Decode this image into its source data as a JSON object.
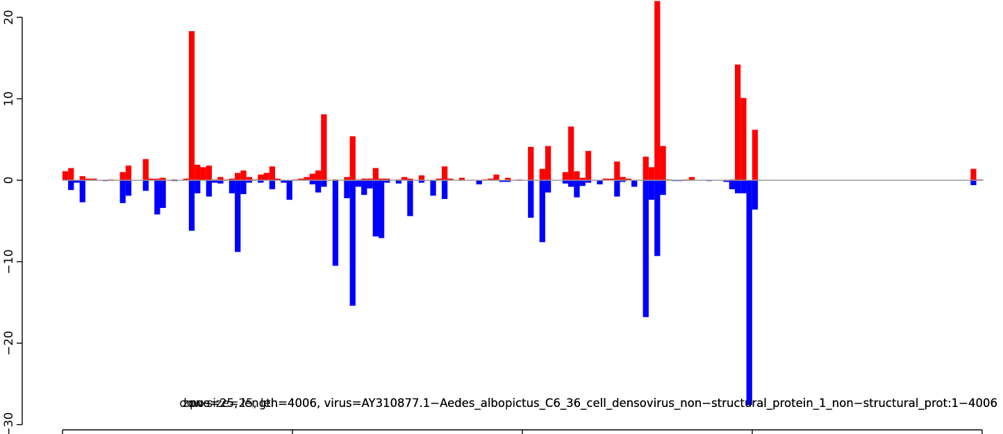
{
  "chart_data": {
    "type": "bar",
    "title": "",
    "xlabel": "",
    "ylabel": "",
    "ylim": [
      -30,
      20
    ],
    "y_ticks": [
      -30,
      -20,
      -10,
      0,
      10,
      20
    ],
    "y_tick_labels": [
      "−30",
      "−20",
      "−10",
      "0",
      "10",
      "20"
    ],
    "xlim": [
      0,
      4006
    ],
    "bin_size": 25,
    "overlay_labels": [
      "dow size=25, len=4006, virus=AY310877.1−Aedes_albopictus_C6_36_cell_densovirus_non−structural_protein_1_non−structural_prot:1−4006",
      "pos=25, length=4006, virus=AY310877.1−Aedes_albopictus_C6_36_cell_densovirus_non−structural_protein_1_non−structural_prot:1−4006",
      "zone=25, length=4006, virus=AY310877.1−Aedes_albopictus_C6_36_cell_densovirus_non−structural_protein_1_non−structural_prot:1−4006"
    ],
    "baseline_color": "#999999",
    "series": [
      {
        "color": "#ff0000",
        "points": [
          {
            "x": 12,
            "y": 1.1
          },
          {
            "x": 37,
            "y": 1.5
          },
          {
            "x": 87,
            "y": 0.5
          },
          {
            "x": 112,
            "y": 0.2
          },
          {
            "x": 137,
            "y": 0.2
          },
          {
            "x": 212,
            "y": 0.1
          },
          {
            "x": 262,
            "y": 1.0
          },
          {
            "x": 287,
            "y": 1.8
          },
          {
            "x": 362,
            "y": 2.6
          },
          {
            "x": 387,
            "y": 0.2
          },
          {
            "x": 412,
            "y": 0.2
          },
          {
            "x": 437,
            "y": 0.3
          },
          {
            "x": 487,
            "y": 0.1
          },
          {
            "x": 537,
            "y": 0.2
          },
          {
            "x": 562,
            "y": 18.3
          },
          {
            "x": 587,
            "y": 1.9
          },
          {
            "x": 612,
            "y": 1.6
          },
          {
            "x": 637,
            "y": 1.8
          },
          {
            "x": 662,
            "y": 0.1
          },
          {
            "x": 687,
            "y": 0.4
          },
          {
            "x": 712,
            "y": 0.1
          },
          {
            "x": 737,
            "y": 0.2
          },
          {
            "x": 762,
            "y": 0.9
          },
          {
            "x": 787,
            "y": 1.2
          },
          {
            "x": 812,
            "y": 0.4
          },
          {
            "x": 837,
            "y": 0.1
          },
          {
            "x": 862,
            "y": 0.7
          },
          {
            "x": 887,
            "y": 0.9
          },
          {
            "x": 912,
            "y": 1.7
          },
          {
            "x": 937,
            "y": 0.2
          },
          {
            "x": 1012,
            "y": 0.1
          },
          {
            "x": 1037,
            "y": 0.2
          },
          {
            "x": 1062,
            "y": 0.4
          },
          {
            "x": 1087,
            "y": 0.8
          },
          {
            "x": 1112,
            "y": 1.2
          },
          {
            "x": 1137,
            "y": 8.1
          },
          {
            "x": 1187,
            "y": 0.1
          },
          {
            "x": 1237,
            "y": 0.4
          },
          {
            "x": 1262,
            "y": 5.4
          },
          {
            "x": 1287,
            "y": 0.1
          },
          {
            "x": 1312,
            "y": 0.2
          },
          {
            "x": 1337,
            "y": 0.2
          },
          {
            "x": 1362,
            "y": 1.5
          },
          {
            "x": 1387,
            "y": 0.2
          },
          {
            "x": 1412,
            "y": 0.2
          },
          {
            "x": 1462,
            "y": 0.1
          },
          {
            "x": 1487,
            "y": 0.4
          },
          {
            "x": 1512,
            "y": 0.2
          },
          {
            "x": 1562,
            "y": 0.6
          },
          {
            "x": 1637,
            "y": 0.2
          },
          {
            "x": 1662,
            "y": 1.7
          },
          {
            "x": 1687,
            "y": 0.2
          },
          {
            "x": 1737,
            "y": 0.3
          },
          {
            "x": 1837,
            "y": 0.1
          },
          {
            "x": 1862,
            "y": 0.2
          },
          {
            "x": 1887,
            "y": 0.7
          },
          {
            "x": 1937,
            "y": 0.3
          },
          {
            "x": 1987,
            "y": 0.1
          },
          {
            "x": 2037,
            "y": 4.1
          },
          {
            "x": 2087,
            "y": 1.4
          },
          {
            "x": 2112,
            "y": 4.2
          },
          {
            "x": 2187,
            "y": 1.0
          },
          {
            "x": 2212,
            "y": 6.6
          },
          {
            "x": 2237,
            "y": 1.1
          },
          {
            "x": 2262,
            "y": 0.3
          },
          {
            "x": 2287,
            "y": 3.6
          },
          {
            "x": 2362,
            "y": 0.2
          },
          {
            "x": 2387,
            "y": 0.2
          },
          {
            "x": 2412,
            "y": 2.3
          },
          {
            "x": 2437,
            "y": 0.4
          },
          {
            "x": 2462,
            "y": 0.2
          },
          {
            "x": 2537,
            "y": 2.9
          },
          {
            "x": 2562,
            "y": 1.6
          },
          {
            "x": 2587,
            "y": 22.0
          },
          {
            "x": 2612,
            "y": 4.2
          },
          {
            "x": 2637,
            "y": 0.1
          },
          {
            "x": 2712,
            "y": 0.1
          },
          {
            "x": 2737,
            "y": 0.4
          },
          {
            "x": 2912,
            "y": 0.1
          },
          {
            "x": 2937,
            "y": 14.2
          },
          {
            "x": 2962,
            "y": 10.1
          },
          {
            "x": 3012,
            "y": 6.2
          },
          {
            "x": 3962,
            "y": 1.4
          },
          {
            "x": 3987,
            "y": 0.1
          }
        ]
      },
      {
        "color": "#0000ff",
        "points": [
          {
            "x": 37,
            "y": -1.2
          },
          {
            "x": 62,
            "y": -0.3
          },
          {
            "x": 87,
            "y": -2.7
          },
          {
            "x": 187,
            "y": -0.1
          },
          {
            "x": 262,
            "y": -2.8
          },
          {
            "x": 287,
            "y": -1.9
          },
          {
            "x": 362,
            "y": -1.3
          },
          {
            "x": 412,
            "y": -4.2
          },
          {
            "x": 437,
            "y": -3.4
          },
          {
            "x": 487,
            "y": -0.1
          },
          {
            "x": 562,
            "y": -6.2
          },
          {
            "x": 587,
            "y": -1.6
          },
          {
            "x": 637,
            "y": -2.0
          },
          {
            "x": 662,
            "y": -0.3
          },
          {
            "x": 687,
            "y": -0.4
          },
          {
            "x": 737,
            "y": -1.6
          },
          {
            "x": 762,
            "y": -8.8
          },
          {
            "x": 787,
            "y": -1.7
          },
          {
            "x": 812,
            "y": -0.3
          },
          {
            "x": 862,
            "y": -0.3
          },
          {
            "x": 912,
            "y": -1.1
          },
          {
            "x": 962,
            "y": -0.3
          },
          {
            "x": 987,
            "y": -2.4
          },
          {
            "x": 1087,
            "y": -0.5
          },
          {
            "x": 1112,
            "y": -1.5
          },
          {
            "x": 1137,
            "y": -0.8
          },
          {
            "x": 1187,
            "y": -10.5
          },
          {
            "x": 1237,
            "y": -2.2
          },
          {
            "x": 1262,
            "y": -15.4
          },
          {
            "x": 1287,
            "y": -0.8
          },
          {
            "x": 1312,
            "y": -1.8
          },
          {
            "x": 1337,
            "y": -1.0
          },
          {
            "x": 1362,
            "y": -6.9
          },
          {
            "x": 1387,
            "y": -7.1
          },
          {
            "x": 1412,
            "y": -0.3
          },
          {
            "x": 1462,
            "y": -0.4
          },
          {
            "x": 1512,
            "y": -4.4
          },
          {
            "x": 1562,
            "y": -0.3
          },
          {
            "x": 1612,
            "y": -1.9
          },
          {
            "x": 1662,
            "y": -2.3
          },
          {
            "x": 1812,
            "y": -0.5
          },
          {
            "x": 1912,
            "y": -0.2
          },
          {
            "x": 1937,
            "y": -0.2
          },
          {
            "x": 2037,
            "y": -4.6
          },
          {
            "x": 2087,
            "y": -7.6
          },
          {
            "x": 2112,
            "y": -1.5
          },
          {
            "x": 2187,
            "y": -0.4
          },
          {
            "x": 2212,
            "y": -0.8
          },
          {
            "x": 2237,
            "y": -2.1
          },
          {
            "x": 2262,
            "y": -0.7
          },
          {
            "x": 2287,
            "y": -0.3
          },
          {
            "x": 2337,
            "y": -0.5
          },
          {
            "x": 2412,
            "y": -2.0
          },
          {
            "x": 2437,
            "y": -0.2
          },
          {
            "x": 2487,
            "y": -0.8
          },
          {
            "x": 2537,
            "y": -16.8
          },
          {
            "x": 2562,
            "y": -2.4
          },
          {
            "x": 2587,
            "y": -9.3
          },
          {
            "x": 2612,
            "y": -1.8
          },
          {
            "x": 2662,
            "y": -0.1
          },
          {
            "x": 2687,
            "y": -0.1
          },
          {
            "x": 2812,
            "y": -0.1
          },
          {
            "x": 2887,
            "y": -0.2
          },
          {
            "x": 2912,
            "y": -1.1
          },
          {
            "x": 2937,
            "y": -1.6
          },
          {
            "x": 2962,
            "y": -1.6
          },
          {
            "x": 2987,
            "y": -27.6
          },
          {
            "x": 3012,
            "y": -3.6
          },
          {
            "x": 3962,
            "y": -0.6
          }
        ]
      }
    ]
  }
}
